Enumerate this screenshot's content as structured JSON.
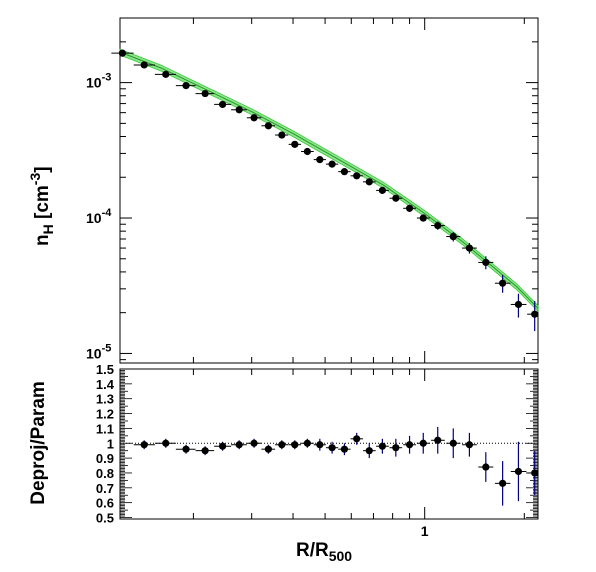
{
  "chart_data": [
    {
      "type": "scatter",
      "panel": "top",
      "scale": {
        "x": "log",
        "y": "log"
      },
      "xlim": [
        0.12,
        2.2
      ],
      "ylim": [
        8.5e-06,
        0.003
      ],
      "ylabel": {
        "main": "n",
        "sub": "H",
        "rest": " [cm",
        "sup": "-3",
        "close": "]"
      },
      "y_ticks": [
        {
          "value": 0.001,
          "base": "10",
          "exp": "-3"
        },
        {
          "value": 0.0001,
          "base": "10",
          "exp": "-4"
        },
        {
          "value": 1e-05,
          "base": "10",
          "exp": "-5"
        }
      ],
      "model_band": {
        "color": "#33cc33",
        "x": [
          0.12,
          0.16,
          0.22,
          0.3,
          0.4,
          0.55,
          0.75,
          1.0,
          1.3,
          1.6,
          1.9,
          2.2
        ],
        "y": [
          0.00168,
          0.00128,
          0.00088,
          0.00061,
          0.00042,
          0.00027,
          0.000175,
          0.000108,
          6.7e-05,
          4.4e-05,
          3.1e-05,
          2.15e-05
        ],
        "rel_width": 0.05
      },
      "series": [
        {
          "marker_color": "#000000",
          "error_color": "#000080",
          "x": [
            0.122,
            0.142,
            0.165,
            0.19,
            0.217,
            0.245,
            0.275,
            0.305,
            0.337,
            0.37,
            0.405,
            0.442,
            0.482,
            0.525,
            0.572,
            0.623,
            0.68,
            0.745,
            0.818,
            0.9,
            0.99,
            1.095,
            1.22,
            1.365,
            1.53,
            1.72,
            1.92,
            2.15
          ],
          "y": [
            0.00165,
            0.00135,
            0.00115,
            0.00095,
            0.00083,
            0.00069,
            0.00063,
            0.00055,
            0.00048,
            0.00041,
            0.00035,
            0.00031,
            0.00027,
            0.00025,
            0.00022,
            0.000205,
            0.000185,
            0.00016,
            0.00014,
            0.000118,
            0.0001,
            8.8e-05,
            7.3e-05,
            6e-05,
            4.7e-05,
            3.3e-05,
            2.3e-05,
            1.95e-05
          ],
          "xerr_lo": [
            0.009,
            0.01,
            0.012,
            0.013,
            0.014,
            0.014,
            0.015,
            0.015,
            0.016,
            0.017,
            0.017,
            0.019,
            0.02,
            0.022,
            0.024,
            0.026,
            0.029,
            0.032,
            0.035,
            0.039,
            0.043,
            0.05,
            0.058,
            0.068,
            0.078,
            0.09,
            0.1,
            0.11
          ],
          "xerr_hi": [
            0.01,
            0.011,
            0.012,
            0.013,
            0.014,
            0.015,
            0.015,
            0.016,
            0.016,
            0.017,
            0.018,
            0.02,
            0.021,
            0.023,
            0.025,
            0.028,
            0.031,
            0.034,
            0.037,
            0.041,
            0.046,
            0.055,
            0.062,
            0.072,
            0.082,
            0.095,
            0.11,
            0.05
          ],
          "yerr_rel": [
            0.03,
            0.03,
            0.03,
            0.03,
            0.03,
            0.03,
            0.03,
            0.03,
            0.03,
            0.03,
            0.03,
            0.03,
            0.04,
            0.04,
            0.04,
            0.04,
            0.05,
            0.05,
            0.05,
            0.06,
            0.06,
            0.07,
            0.08,
            0.09,
            0.11,
            0.15,
            0.2,
            0.25
          ]
        }
      ]
    },
    {
      "type": "scatter",
      "panel": "bottom",
      "scale": {
        "x": "log",
        "y": "linear"
      },
      "xlim": [
        0.12,
        2.2
      ],
      "ylim": [
        0.49,
        1.5
      ],
      "ylabel": "Deproj/Param",
      "xlabel": {
        "main": "R/R",
        "sub": "500"
      },
      "x_ticks": [
        {
          "value": 1,
          "label": "1"
        }
      ],
      "y_ticks": [
        {
          "value": 0.5,
          "label": "0.5"
        },
        {
          "value": 0.6,
          "label": "0.6"
        },
        {
          "value": 0.7,
          "label": "0.7"
        },
        {
          "value": 0.8,
          "label": "0.8"
        },
        {
          "value": 0.9,
          "label": "0.9"
        },
        {
          "value": 1.0,
          "label": "1"
        },
        {
          "value": 1.1,
          "label": "1.1"
        },
        {
          "value": 1.2,
          "label": "1.2"
        },
        {
          "value": 1.3,
          "label": "1.3"
        },
        {
          "value": 1.4,
          "label": "1.4"
        },
        {
          "value": 1.5,
          "label": "1.5"
        }
      ],
      "reference_line": 1.0,
      "series": [
        {
          "marker_color": "#000000",
          "error_color": "#000080",
          "x": [
            0.142,
            0.165,
            0.19,
            0.217,
            0.245,
            0.275,
            0.305,
            0.337,
            0.37,
            0.405,
            0.442,
            0.482,
            0.525,
            0.572,
            0.623,
            0.68,
            0.745,
            0.818,
            0.9,
            0.99,
            1.095,
            1.22,
            1.365,
            1.53,
            1.72,
            1.92,
            2.15
          ],
          "y": [
            0.99,
            1.0,
            0.96,
            0.95,
            0.98,
            0.99,
            1.0,
            0.96,
            0.99,
            0.99,
            1.0,
            0.99,
            0.97,
            0.96,
            1.03,
            0.95,
            0.98,
            0.97,
            0.99,
            1.0,
            1.02,
            1.0,
            0.99,
            0.84,
            0.73,
            0.81,
            0.8
          ],
          "yerr": [
            0.03,
            0.03,
            0.03,
            0.03,
            0.03,
            0.03,
            0.03,
            0.03,
            0.03,
            0.03,
            0.03,
            0.04,
            0.04,
            0.04,
            0.04,
            0.05,
            0.05,
            0.06,
            0.06,
            0.07,
            0.09,
            0.1,
            0.08,
            0.1,
            0.15,
            0.2,
            0.15
          ]
        }
      ]
    }
  ]
}
